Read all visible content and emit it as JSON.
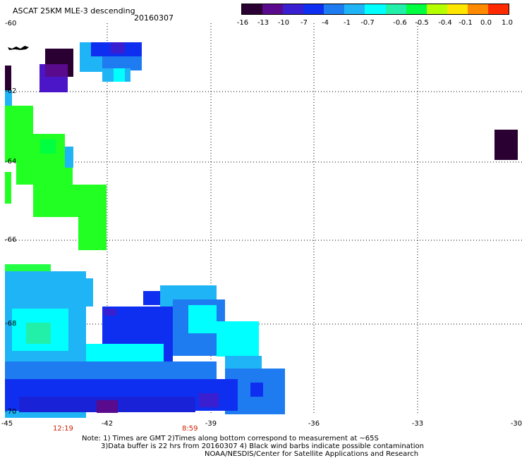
{
  "header": {
    "title": "ASCAT 25KM MLE-3 descending",
    "date": "20160307"
  },
  "colorbar": {
    "labels": [
      "-16",
      "-13",
      "-10",
      "-7",
      "-4",
      "-1",
      "-0.7",
      "-0.6",
      "-0.5",
      "-0.4",
      "-0.1",
      "0.0",
      "1.0"
    ],
    "colors": [
      "#2a0033",
      "#5a0a8c",
      "#3a1fd0",
      "#0f2ff0",
      "#1e7cf0",
      "#1fb4f5",
      "#00ffff",
      "#22f0a8",
      "#00ff40",
      "#b5ff00",
      "#ffe600",
      "#ff8a00",
      "#ff2a00"
    ]
  },
  "axes": {
    "x_labels": [
      "-45",
      "-42",
      "-39",
      "-36",
      "-33",
      "-30"
    ],
    "y_labels": [
      "-60",
      "-62",
      "-64",
      "-66",
      "-68",
      "-70"
    ]
  },
  "times": [
    "12:19",
    "8:59"
  ],
  "notes": [
    "Note: 1) Times are GMT 2)Times along bottom correspond to measurement at ~65S",
    "3)Data buffer is 22 hrs from 20160307 4) Black wind barbs indicate possible contamination",
    "NOAA/NESDIS/Center for Satellite Applications and Research"
  ],
  "map_legend_colors": {
    "dark": "#2a0033",
    "purple": "#5a0a8c",
    "blue": "#0f2ff0",
    "mid_blue": "#1e7cf0",
    "light_blue": "#1fb4f5",
    "cyan": "#00ffff",
    "green": "#00ff40"
  }
}
